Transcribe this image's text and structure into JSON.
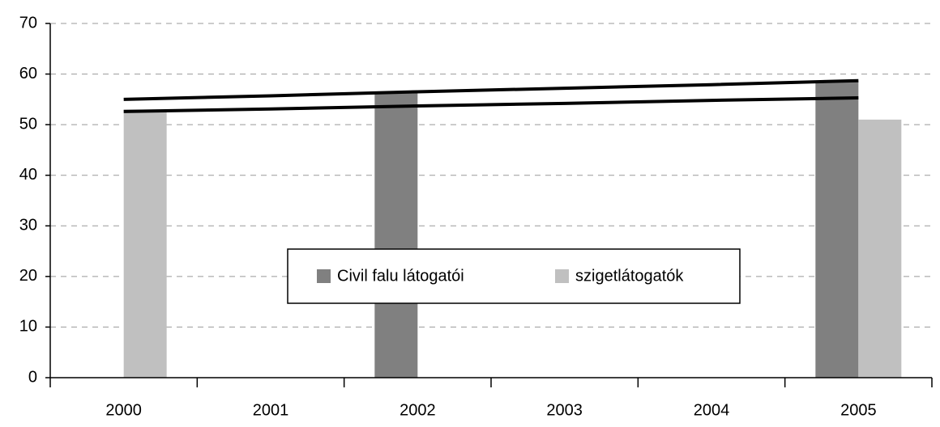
{
  "chart_data": {
    "type": "bar",
    "categories": [
      "2000",
      "2001",
      "2002",
      "2003",
      "2004",
      "2005"
    ],
    "series": [
      {
        "name": "Civil falu látogatói",
        "color": "#808080",
        "values": [
          null,
          null,
          56.3,
          null,
          null,
          58.6
        ]
      },
      {
        "name": "szigetlátogatók",
        "color": "#c0c0c0",
        "values": [
          53,
          null,
          null,
          null,
          null,
          51
        ]
      }
    ],
    "trendlines": [
      {
        "color": "#000000",
        "values": [
          55,
          55.7,
          56.5,
          57.2,
          57.9,
          58.7
        ]
      },
      {
        "color": "#000000",
        "values": [
          52.6,
          53.1,
          53.7,
          54.2,
          54.8,
          55.3
        ]
      }
    ],
    "ylim": [
      0,
      70
    ],
    "yticks": [
      0,
      10,
      20,
      30,
      40,
      50,
      60,
      70
    ],
    "grid": true,
    "legend": "center"
  }
}
